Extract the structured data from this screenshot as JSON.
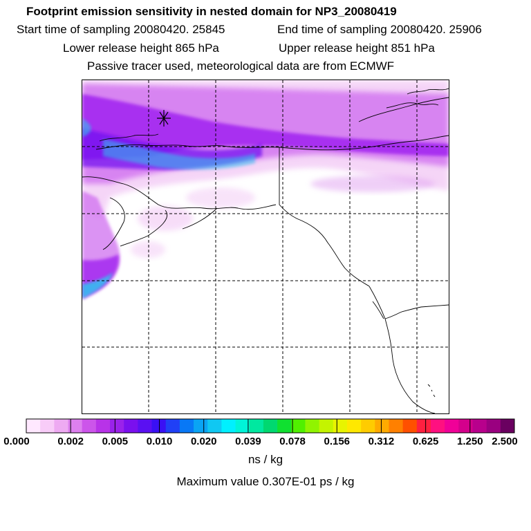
{
  "header": {
    "title": "Footprint emission sensitivity in nested domain for NP3_20080419",
    "start": "Start time of sampling 20080420. 25845",
    "end": "End time of sampling 20080420. 25906",
    "lower": "Lower release height  865 hPa",
    "upper": "Upper release height  851 hPa",
    "info": "Passive tracer used, meteorological data are from ECMWF"
  },
  "map": {
    "marker_icon": "asterisk-icon",
    "plume_colors": [
      "#f2c8f5",
      "#d070f0",
      "#a020f0",
      "#7010f0",
      "#2ec4f0"
    ]
  },
  "colorbar": {
    "colors": [
      "#ffe8ff",
      "#f8ccf8",
      "#eeaaf2",
      "#dd80ee",
      "#cc55ea",
      "#b833e8",
      "#9a22ea",
      "#7a10ee",
      "#5a10f2",
      "#3a10f4",
      "#2040f6",
      "#0878f6",
      "#0aa4f4",
      "#10c8f2",
      "#00f0ff",
      "#00f4d8",
      "#00e8a0",
      "#00d870",
      "#10e030",
      "#50f000",
      "#90f400",
      "#c4f400",
      "#e8f400",
      "#ffe800",
      "#ffcc00",
      "#ffaa00",
      "#ff8000",
      "#ff5000",
      "#ff2040",
      "#ff1080",
      "#f00098",
      "#d4008c",
      "#b8008c",
      "#9a0080",
      "#6a0060"
    ],
    "tick_labels": [
      "0.000",
      "0.002",
      "0.005",
      "0.010",
      "0.020",
      "0.039",
      "0.078",
      "0.156",
      "0.312",
      "0.625",
      "1.250",
      "2.500"
    ],
    "units": "ns / kg"
  },
  "footer": {
    "max_value": "Maximum value  0.307E-01 ps / kg"
  }
}
